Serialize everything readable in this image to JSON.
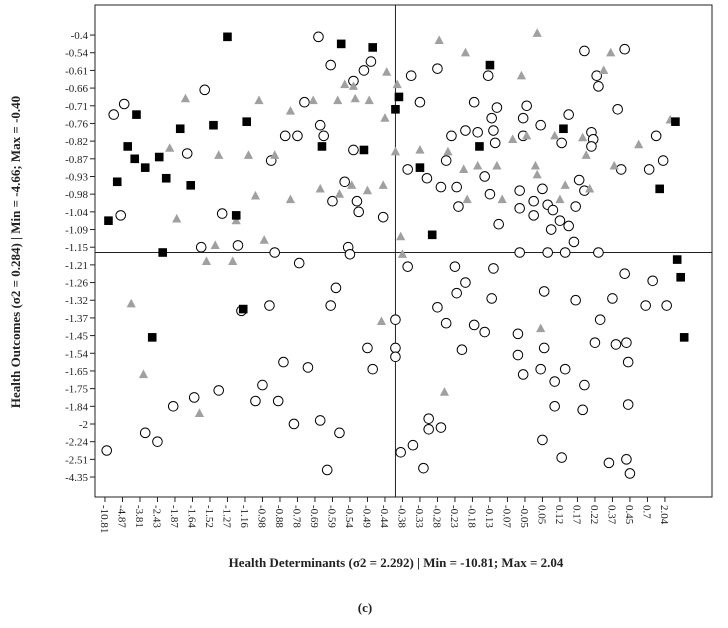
{
  "chart_data": {
    "type": "scatter",
    "title": "(c)",
    "x_label": "Health Determinants (σ2 = 2.292) | Min = -10.81; Max = 2.04",
    "y_label": "Health Outcomes (σ2 = 0.284) | Min = -4.66; Max = -0.40",
    "xlim": [
      -0.57,
      34.69
    ],
    "ylim": [
      -1.13,
      26.7
    ],
    "xticks": [
      {
        "value": 0,
        "label": "-10.81"
      },
      {
        "value": 1,
        "label": "-4.87"
      },
      {
        "value": 2,
        "label": "-3.81"
      },
      {
        "value": 3,
        "label": "-2.43"
      },
      {
        "value": 4,
        "label": "-1.87"
      },
      {
        "value": 5,
        "label": "-1.64"
      },
      {
        "value": 6,
        "label": "-1.52"
      },
      {
        "value": 7,
        "label": "-1.27"
      },
      {
        "value": 8,
        "label": "-1.16"
      },
      {
        "value": 9,
        "label": "-0.98"
      },
      {
        "value": 10,
        "label": "-0.88"
      },
      {
        "value": 11,
        "label": "-0.78"
      },
      {
        "value": 12,
        "label": "-0.69"
      },
      {
        "value": 13,
        "label": "-0.59"
      },
      {
        "value": 14,
        "label": "-0.54"
      },
      {
        "value": 15,
        "label": "-0.49"
      },
      {
        "value": 16,
        "label": "-0.44"
      },
      {
        "value": 17,
        "label": "-0.38"
      },
      {
        "value": 18,
        "label": "-0.33"
      },
      {
        "value": 19,
        "label": "-0.28"
      },
      {
        "value": 20,
        "label": "-0.23"
      },
      {
        "value": 21,
        "label": "-0.18"
      },
      {
        "value": 22,
        "label": "-0.13"
      },
      {
        "value": 23,
        "label": "-0.07"
      },
      {
        "value": 24,
        "label": "-0.05"
      },
      {
        "value": 25,
        "label": "0.05"
      },
      {
        "value": 26,
        "label": "0.12"
      },
      {
        "value": 27,
        "label": "0.17"
      },
      {
        "value": 28,
        "label": "0.22"
      },
      {
        "value": 29,
        "label": "0.37"
      },
      {
        "value": 30,
        "label": "0.45"
      },
      {
        "value": 31,
        "label": "0.7"
      },
      {
        "value": 32,
        "label": "2.04"
      }
    ],
    "yticks": [
      {
        "value": 0,
        "label": "-4.35"
      },
      {
        "value": 1,
        "label": "-2.51"
      },
      {
        "value": 2,
        "label": "-2.24"
      },
      {
        "value": 3,
        "label": "-2"
      },
      {
        "value": 4,
        "label": "-1.84"
      },
      {
        "value": 5,
        "label": "-1.75"
      },
      {
        "value": 6,
        "label": "-1.65"
      },
      {
        "value": 7,
        "label": "-1.54"
      },
      {
        "value": 8,
        "label": "-1.45"
      },
      {
        "value": 9,
        "label": "-1.37"
      },
      {
        "value": 10,
        "label": "-1.32"
      },
      {
        "value": 11,
        "label": "-1.26"
      },
      {
        "value": 12,
        "label": "-1.21"
      },
      {
        "value": 13,
        "label": "-1.15"
      },
      {
        "value": 14,
        "label": "-1.09"
      },
      {
        "value": 15,
        "label": "-1.04"
      },
      {
        "value": 16,
        "label": "-0.98"
      },
      {
        "value": 17,
        "label": "-0.93"
      },
      {
        "value": 18,
        "label": "-0.87"
      },
      {
        "value": 19,
        "label": "-0.82"
      },
      {
        "value": 20,
        "label": "-0.76"
      },
      {
        "value": 21,
        "label": "-0.71"
      },
      {
        "value": 22,
        "label": "-0.66"
      },
      {
        "value": 23,
        "label": "-0.61"
      },
      {
        "value": 24,
        "label": "-0.54"
      },
      {
        "value": 25,
        "label": "-0.4"
      }
    ],
    "reference_lines": {
      "x": 16.6,
      "y": 12.7
    },
    "series": [
      {
        "marker": "circle",
        "color": "#000000",
        "x": [
          12.2,
          27.4,
          29.7,
          21.9,
          19.0,
          17.5,
          12.9,
          14.2,
          14.8,
          15.2,
          0.5,
          1.1,
          5.7,
          11.4,
          18.0,
          21.1,
          22.4,
          22.1,
          24.1,
          23.9,
          28.1,
          28.2,
          29.3,
          26.5,
          24.9,
          21.3,
          20.6,
          22.2,
          27.8,
          27.9,
          27.8,
          26.1,
          22.3,
          19.8,
          23.9,
          10.3,
          11.0,
          9.5,
          12.3,
          12.5,
          4.7,
          14.2,
          31.5,
          31.9,
          31.1,
          29.5,
          19.5,
          17.3,
          18.4,
          19.2,
          20.1,
          21.7,
          22.0,
          23.7,
          25.0,
          25.3,
          26.9,
          27.4,
          27.1,
          20.2,
          23.7,
          24.5,
          25.6,
          22.5,
          26.5,
          26.8,
          25.5,
          24.5,
          26.0,
          13.7,
          14.4,
          14.5,
          15.9,
          13.0,
          6.7,
          7.6,
          5.5,
          0.9,
          9.7,
          13.9,
          14.0,
          11.1,
          13.2,
          12.9,
          9.4,
          7.8,
          17.3,
          20.0,
          20.6,
          22.2,
          20.1,
          22.1,
          23.7,
          25.3,
          26.3,
          28.2,
          29.7,
          31.3,
          29.0,
          30.9,
          32.1,
          26.9,
          25.1,
          19.0,
          19.5,
          21.1,
          21.7,
          23.6,
          20.4,
          23.6,
          25.1,
          28.3,
          29.2,
          28.0,
          29.8,
          29.9,
          15.0,
          15.3,
          16.6,
          16.6,
          16.6,
          10.2,
          11.6,
          9.0,
          8.6,
          9.9,
          10.8,
          12.3,
          13.4,
          6.5,
          5.1,
          3.9,
          26.3,
          25.7,
          27.3,
          29.9,
          25.7,
          24.9,
          23.9,
          25.0,
          26.1,
          28.8,
          29.8,
          30.0,
          27.4,
          18.5,
          19.2,
          18.5,
          17.6,
          18.2,
          16.9,
          0.1,
          2.3,
          3.0,
          12.7
        ],
        "y": [
          24.9,
          24.1,
          24.2,
          22.7,
          23.1,
          22.7,
          23.3,
          22.4,
          23.0,
          23.5,
          20.5,
          21.1,
          21.9,
          21.2,
          21.2,
          21.2,
          20.9,
          20.3,
          21.0,
          20.3,
          22.7,
          22.1,
          20.8,
          20.5,
          19.9,
          19.5,
          19.6,
          19.6,
          19.5,
          19.1,
          18.7,
          18.9,
          18.9,
          19.3,
          19.3,
          19.3,
          19.3,
          17.9,
          19.9,
          19.3,
          18.3,
          18.5,
          19.3,
          17.9,
          17.4,
          17.4,
          17.9,
          17.4,
          16.9,
          16.4,
          16.4,
          17.0,
          16.0,
          16.2,
          16.3,
          15.4,
          15.3,
          16.2,
          16.8,
          15.3,
          15.2,
          15.6,
          15.1,
          14.3,
          14.2,
          13.3,
          14.0,
          14.8,
          14.5,
          16.7,
          15.6,
          15.0,
          14.7,
          15.6,
          14.9,
          13.1,
          13.0,
          14.8,
          12.7,
          13.0,
          12.6,
          12.1,
          10.7,
          9.7,
          9.7,
          9.4,
          11.9,
          11.9,
          11.0,
          11.8,
          10.4,
          10.1,
          12.7,
          12.7,
          12.7,
          12.7,
          11.5,
          11.1,
          10.1,
          9.7,
          9.7,
          10.0,
          10.5,
          9.6,
          8.7,
          8.6,
          8.2,
          8.1,
          7.2,
          6.9,
          7.3,
          8.9,
          7.5,
          7.6,
          7.6,
          6.5,
          7.3,
          6.1,
          8.9,
          7.3,
          6.8,
          6.5,
          6.2,
          5.2,
          4.3,
          4.3,
          3.0,
          3.2,
          2.5,
          4.9,
          4.5,
          4.0,
          6.1,
          4.0,
          3.8,
          4.1,
          5.4,
          6.1,
          5.8,
          2.1,
          1.1,
          0.8,
          1.0,
          0.2,
          5.2,
          3.3,
          2.8,
          2.7,
          1.8,
          0.5,
          1.4,
          1.5,
          2.5,
          2.0,
          0.4
        ]
      },
      {
        "marker": "triangle",
        "color": "#a0a0a0",
        "x": [
          19.1,
          24.7,
          20.6,
          23.8,
          28.5,
          28.9,
          16.1,
          13.7,
          14.2,
          15.1,
          14.3,
          13.3,
          11.9,
          10.6,
          8.8,
          4.6,
          3.7,
          8.2,
          9.7,
          6.5,
          16.7,
          16.0,
          19.6,
          18.0,
          16.6,
          20.5,
          21.3,
          22.4,
          23.3,
          24.1,
          25.7,
          27.3,
          27.5,
          30.5,
          32.3,
          29.1,
          24.7,
          22.7,
          26.0,
          20.7,
          15.9,
          15.0,
          14.1,
          13.4,
          12.3,
          10.6,
          8.6,
          4.1,
          7.5,
          9.1,
          6.3,
          5.8,
          7.3,
          16.9,
          17.0,
          15.8,
          1.5,
          2.2,
          5.4,
          19.4,
          24.9,
          24.6,
          26.3,
          27.7
        ],
        "y": [
          24.7,
          25.1,
          24.0,
          22.7,
          23.0,
          24.0,
          22.9,
          22.2,
          22.1,
          21.3,
          21.4,
          21.3,
          21.3,
          20.7,
          21.3,
          21.4,
          18.6,
          18.2,
          18.2,
          18.2,
          22.2,
          20.3,
          18.4,
          18.5,
          18.4,
          17.4,
          17.6,
          17.6,
          19.1,
          19.3,
          19.3,
          19.2,
          18.2,
          18.8,
          20.2,
          17.6,
          17.1,
          15.7,
          15.7,
          15.7,
          16.5,
          16.2,
          16.5,
          16.0,
          16.3,
          15.7,
          15.9,
          14.6,
          14.5,
          13.4,
          13.1,
          12.2,
          12.2,
          13.6,
          12.6,
          8.8,
          9.8,
          5.8,
          3.6,
          4.8,
          8.4,
          17.6,
          16.5,
          16.3
        ]
      },
      {
        "marker": "square",
        "color": "#000000",
        "x": [
          7.0,
          13.5,
          15.3,
          22.0,
          16.8,
          16.6,
          1.8,
          1.3,
          4.3,
          6.2,
          8.1,
          32.6,
          26.2,
          0.7,
          1.7,
          3.1,
          2.3,
          3.5,
          4.9,
          12.4,
          14.8,
          18.0,
          21.4,
          31.7,
          7.5,
          18.7,
          0.2,
          3.3,
          7.9,
          2.7,
          32.7,
          32.9,
          33.1
        ],
        "y": [
          24.9,
          24.5,
          24.3,
          23.3,
          21.5,
          20.8,
          20.5,
          18.7,
          19.7,
          19.9,
          20.1,
          20.1,
          19.7,
          16.7,
          18.0,
          18.1,
          17.5,
          16.9,
          16.5,
          18.7,
          18.5,
          17.5,
          18.7,
          16.3,
          14.8,
          13.7,
          14.5,
          12.7,
          9.5,
          7.9,
          12.3,
          11.3,
          7.9
        ]
      }
    ]
  }
}
